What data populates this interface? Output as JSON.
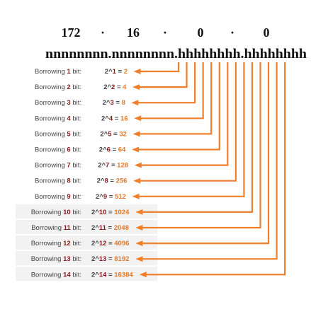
{
  "address": {
    "octets": [
      "172",
      "16",
      "0",
      "0"
    ],
    "separator": "·",
    "bit_pattern": "nnnnnnnn.nnnnnnnn.hhhhhhhh.hhhhhhhh"
  },
  "rows": [
    {
      "prefix": "Borrowing ",
      "num": "1",
      "suffix": " bit:",
      "base": "2^",
      "exp": "1",
      "eq": " = ",
      "value": "2"
    },
    {
      "prefix": "Borrowing ",
      "num": "2",
      "suffix": " bit:",
      "base": "2^",
      "exp": "2",
      "eq": " = ",
      "value": "4"
    },
    {
      "prefix": "Borrowing ",
      "num": "3",
      "suffix": " bit:",
      "base": "2^",
      "exp": "3",
      "eq": " = ",
      "value": "8"
    },
    {
      "prefix": "Borrowing ",
      "num": "4",
      "suffix": " bit:",
      "base": "2^",
      "exp": "4",
      "eq": " = ",
      "value": "16"
    },
    {
      "prefix": "Borrowing ",
      "num": "5",
      "suffix": " bit:",
      "base": "2^",
      "exp": "5",
      "eq": " = ",
      "value": "32"
    },
    {
      "prefix": "Borrowing ",
      "num": "6",
      "suffix": " bit:",
      "base": "2^",
      "exp": "6",
      "eq": " = ",
      "value": "64"
    },
    {
      "prefix": "Borrowing ",
      "num": "7",
      "suffix": " bit:",
      "base": "2^",
      "exp": "7",
      "eq": " = ",
      "value": "128"
    },
    {
      "prefix": "Borrowing ",
      "num": "8",
      "suffix": " bit:",
      "base": "2^",
      "exp": "8",
      "eq": " = ",
      "value": "256"
    },
    {
      "prefix": "Borrowing ",
      "num": "9",
      "suffix": " bit:",
      "base": "2^",
      "exp": "9",
      "eq": " = ",
      "value": "512"
    },
    {
      "prefix": "Borrowing ",
      "num": "10",
      "suffix": " bit:",
      "base": "2^",
      "exp": "10",
      "eq": " = ",
      "value": "1024"
    },
    {
      "prefix": "Borrowing ",
      "num": "11",
      "suffix": " bit:",
      "base": "2^",
      "exp": "11",
      "eq": " = ",
      "value": "2048"
    },
    {
      "prefix": "Borrowing ",
      "num": "12",
      "suffix": " bit:",
      "base": "2^",
      "exp": "12",
      "eq": " = ",
      "value": "4096"
    },
    {
      "prefix": "Borrowing ",
      "num": "13",
      "suffix": " bit:",
      "base": "2^",
      "exp": "13",
      "eq": " = ",
      "value": "8192"
    },
    {
      "prefix": "Borrowing ",
      "num": "14",
      "suffix": " bit:",
      "base": "2^",
      "exp": "14",
      "eq": " = ",
      "value": "16384"
    }
  ],
  "colors": {
    "connector": "#f07f2c",
    "bit_number": "#8b1a1a",
    "label": "#444444",
    "address_text": "#111111",
    "row_band": "#f2f2f2"
  }
}
